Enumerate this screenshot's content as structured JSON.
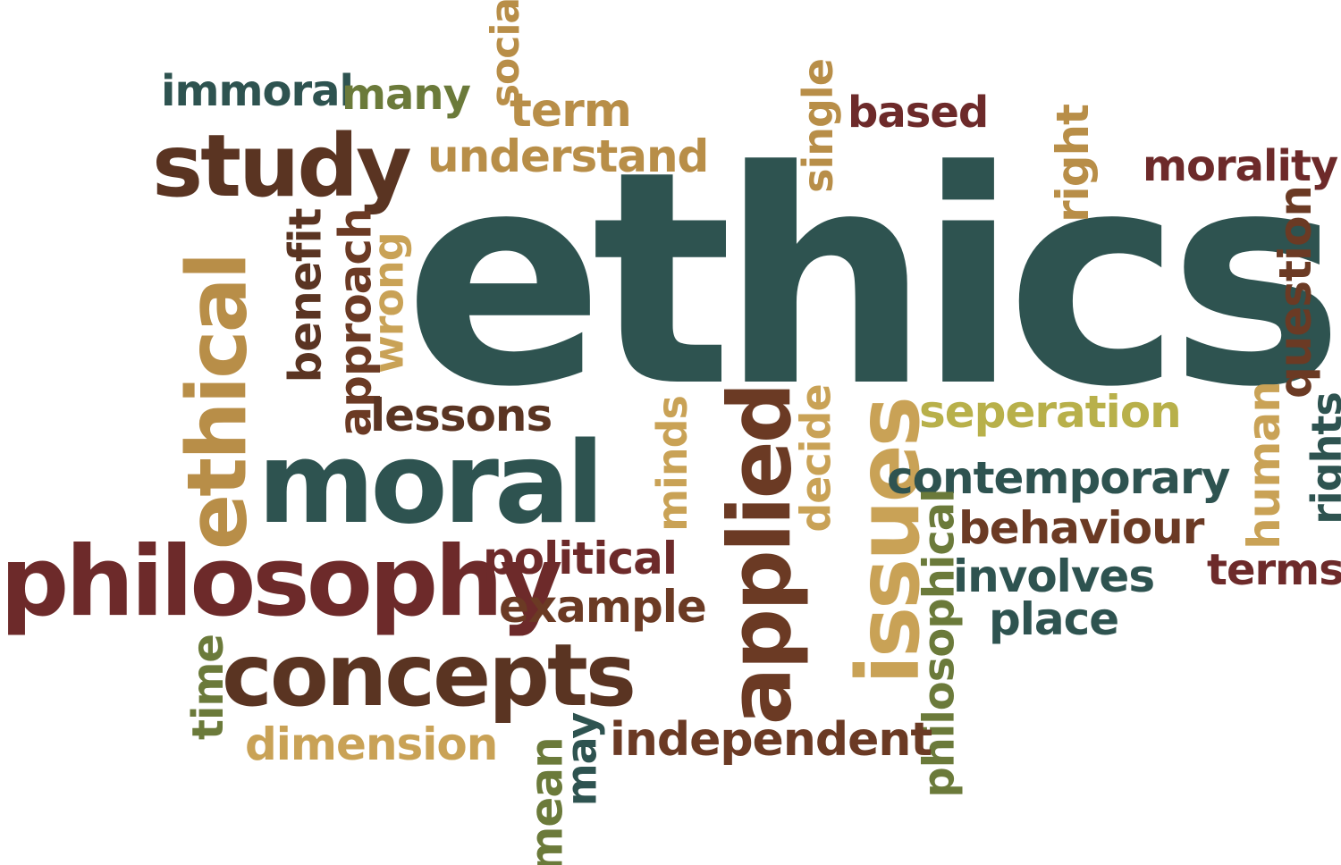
{
  "cloud": {
    "words": {
      "ethics": "ethics",
      "immoral": "immoral",
      "many": "many",
      "social": "social",
      "term": "term",
      "study": "study",
      "understand": "understand",
      "single": "single",
      "based": "based",
      "right": "right",
      "morality": "morality",
      "question": "question",
      "ethical": "ethical",
      "benefit": "benefit",
      "approach": "approach",
      "wrong": "wrong",
      "lessons": "lessons",
      "seperation": "seperation",
      "rights": "rights",
      "human": "human",
      "minds": "minds",
      "applied": "applied",
      "decide": "decide",
      "issues": "issues",
      "moral": "moral",
      "contemporary": "contemporary",
      "behaviour": "behaviour",
      "philosophical": "philosophical",
      "involves": "involves",
      "terms": "terms",
      "place": "place",
      "philosophy": "philosophy",
      "political": "political",
      "example": "example",
      "time": "time",
      "concepts": "concepts",
      "dimension": "dimension",
      "may": "may",
      "independent": "independent",
      "mean": "mean"
    },
    "colors": {
      "teal": "#2e5350",
      "maroon": "#6d2a2a",
      "brown": "#6b3a24",
      "tan": "#b88e48",
      "gold": "#c9a256",
      "olive": "#6b7a3a",
      "lime": "#b8b04a"
    }
  }
}
